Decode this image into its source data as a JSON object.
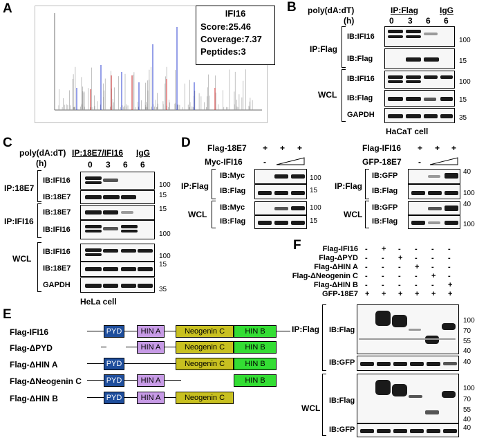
{
  "panelA": {
    "label": "A",
    "protein": "IFI16",
    "score": "Score:25.46",
    "coverage": "Coverage:7.37",
    "peptides": "Peptides:3"
  },
  "panelB": {
    "label": "B",
    "treatment": "poly(dA:dT)",
    "unit": "(h)",
    "ip_header": "IP:Flag",
    "igg": "IgG",
    "times": [
      "0",
      "3",
      "6",
      "6"
    ],
    "ip_group": "IP:Flag",
    "wcl_group": "WCL",
    "rows": [
      "IB:IFI16",
      "IB:Flag",
      "IB:IFI16",
      "IB:Flag",
      "GAPDH"
    ],
    "mw": [
      "100",
      "15",
      "100",
      "15",
      "35"
    ],
    "cell": "HaCaT cell"
  },
  "panelC": {
    "label": "C",
    "treatment": "poly(dA:dT)",
    "unit": "(h)",
    "ip_header": "IP:18E7/IFI16",
    "igg": "IgG",
    "times": [
      "0",
      "3",
      "6",
      "6"
    ],
    "groups": [
      "IP:18E7",
      "IP:IFI16",
      "WCL"
    ],
    "rows": [
      "IB:IFI16",
      "IB:18E7",
      "IB:18E7",
      "IB:IFI16",
      "IB:IFI16",
      "IB:18E7",
      "GAPDH"
    ],
    "mw": [
      "100",
      "15",
      "15",
      "100",
      "100",
      "15",
      "35"
    ],
    "cell": "HeLa cell"
  },
  "panelD": {
    "label": "D",
    "left": {
      "r1": "Flag-18E7",
      "r2": "Myc-IFI16",
      "s1": [
        "+",
        "+",
        "+"
      ],
      "s2": [
        "-"
      ],
      "ip": "IP:Flag",
      "wcl": "WCL",
      "rows": [
        "IB:Myc",
        "IB:Flag",
        "IB:Myc",
        "IB:Flag"
      ],
      "mw": [
        "100",
        "15",
        "100",
        "15"
      ]
    },
    "right": {
      "r1": "Flag-IFI16",
      "r2": "GFP-18E7",
      "s1": [
        "+",
        "+",
        "+"
      ],
      "s2": [
        "-"
      ],
      "ip": "IP:Flag",
      "wcl": "WCL",
      "rows": [
        "IB:GFP",
        "IB:Flag",
        "IB:GFP",
        "IB:Flag"
      ],
      "mw": [
        "40",
        "100",
        "40",
        "100"
      ]
    }
  },
  "panelE": {
    "label": "E",
    "constructs": [
      "Flag-IFI16",
      "Flag-ΔPYD",
      "Flag-ΔHIN A",
      "Flag-ΔNeogenin C",
      "Flag-ΔHIN B"
    ],
    "domains": {
      "pyd": "PYD",
      "hina": "HIN A",
      "neo": "Neogenin C",
      "hinb": "HIN B"
    },
    "colors": {
      "pyd": "#1f4e9c",
      "hina": "#c79be6",
      "neo": "#c8c020",
      "hinb": "#33dd33"
    }
  },
  "panelF": {
    "label": "F",
    "rows": [
      {
        "name": "Flag-IFI16",
        "signs": [
          "-",
          "+",
          "-",
          "-",
          "-",
          "-"
        ]
      },
      {
        "name": "Flag-ΔPYD",
        "signs": [
          "-",
          "-",
          "+",
          "-",
          "-",
          "-"
        ]
      },
      {
        "name": "Flag-ΔHIN A",
        "signs": [
          "-",
          "-",
          "-",
          "+",
          "-",
          "-"
        ]
      },
      {
        "name": "Flag-ΔNeogenin C",
        "signs": [
          "-",
          "-",
          "-",
          "-",
          "+",
          "-"
        ]
      },
      {
        "name": "Flag-ΔHIN B",
        "signs": [
          "-",
          "-",
          "-",
          "-",
          "-",
          "+"
        ]
      },
      {
        "name": "GFP-18E7",
        "signs": [
          "+",
          "+",
          "+",
          "+",
          "+",
          "+"
        ]
      }
    ],
    "ip": "IP:Flag",
    "wcl": "WCL",
    "blots": [
      "IB:Flag",
      "IB:GFP",
      "IB:Flag",
      "IB:GFP"
    ],
    "mw_ip": [
      "100",
      "70",
      "55",
      "40"
    ],
    "mw_ipgfp": "40",
    "mw_wcl": [
      "100",
      "70",
      "55",
      "40"
    ],
    "mw_wclgfp": "40"
  }
}
